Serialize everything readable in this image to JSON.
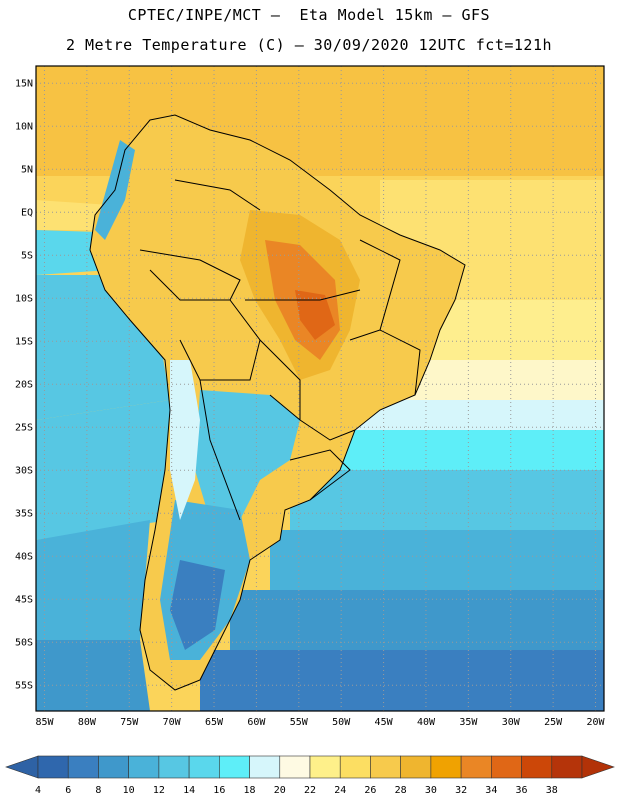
{
  "header": {
    "title_line1": "CPTEC/INPE/MCT –  Eta Model 15km – GFS",
    "title_line2": "2 Metre Temperature (C) – 30/09/2020 12UTC fct=121h"
  },
  "map": {
    "lat_labels": [
      "15N",
      "10N",
      "5N",
      "EQ",
      "5S",
      "10S",
      "15S",
      "20S",
      "25S",
      "30S",
      "35S",
      "40S",
      "45S",
      "50S",
      "55S"
    ],
    "lon_labels": [
      "85W",
      "80W",
      "75W",
      "70W",
      "65W",
      "60W",
      "55W",
      "50W",
      "45W",
      "40W",
      "35W",
      "30W",
      "25W",
      "20W"
    ],
    "lat_range": [
      17,
      -58
    ],
    "lon_range": [
      -86,
      -19
    ]
  },
  "colorbar": {
    "values": [
      "4",
      "6",
      "8",
      "10",
      "12",
      "14",
      "16",
      "18",
      "20",
      "22",
      "24",
      "26",
      "28",
      "30",
      "32",
      "34",
      "36",
      "38"
    ],
    "colors": [
      "#2f67ad",
      "#3a7fc0",
      "#3f98cb",
      "#4ab2d9",
      "#57c7e3",
      "#5ad7ec",
      "#5eeef8",
      "#d6f6fb",
      "#fefae3",
      "#fef08a",
      "#fcde62",
      "#f7ca4c",
      "#efb52f",
      "#f0a201",
      "#ea8625",
      "#e06716",
      "#cc4708",
      "#b5340a"
    ],
    "low_end_color": "#2e62a5",
    "high_end_color": "#b23208"
  }
}
